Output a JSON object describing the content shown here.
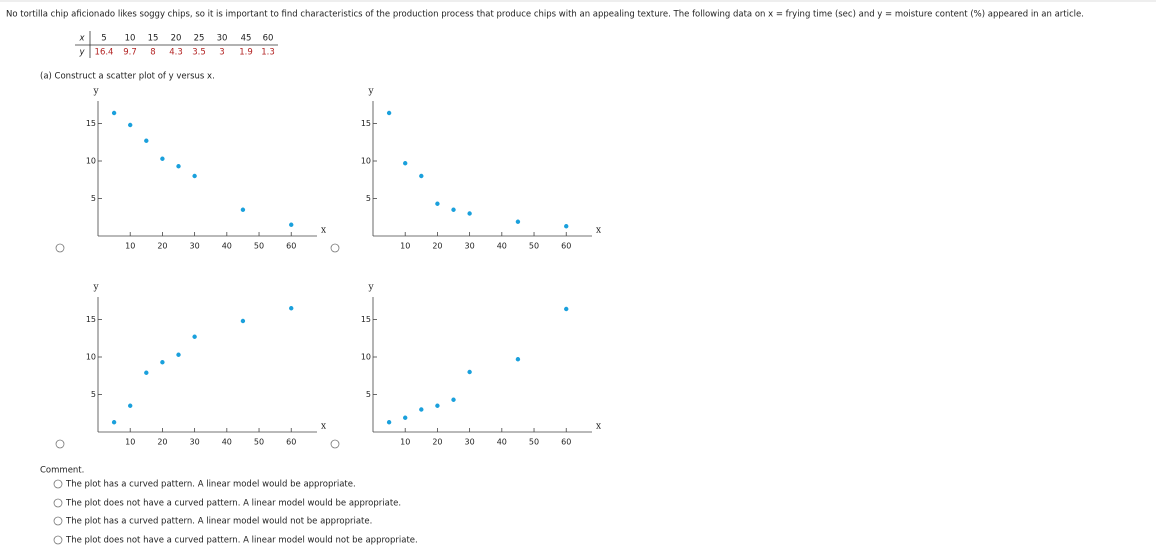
{
  "question": "No tortilla chip aficionado likes soggy chips, so it is important to find characteristics of the production process that produce chips with an appealing texture. The following data on x = frying time (sec) and y = moisture content (%) appeared in an article.",
  "table": {
    "x_label": "x",
    "y_label": "y",
    "x": [
      5,
      10,
      15,
      20,
      25,
      30,
      45,
      60
    ],
    "y": [
      16.4,
      9.7,
      8.0,
      4.3,
      3.5,
      3.0,
      1.9,
      1.3
    ]
  },
  "part_a": "(a) Construct a scatter plot of y versus x.",
  "chart_data": [
    {
      "type": "scatter",
      "x_label": "x",
      "y_label": "y",
      "color": "#1aa0dc",
      "xlim": [
        0,
        68
      ],
      "ylim": [
        0,
        18
      ],
      "xticks": [
        10,
        20,
        30,
        40,
        50,
        60
      ],
      "yticks": [
        5,
        10,
        15
      ],
      "x": [
        5,
        10,
        15,
        20,
        25,
        30,
        45,
        60
      ],
      "y": [
        16.4,
        14.8,
        12.7,
        10.3,
        9.3,
        8.0,
        3.5,
        1.5
      ]
    },
    {
      "type": "scatter",
      "x_label": "x",
      "y_label": "y",
      "color": "#1aa0dc",
      "xlim": [
        0,
        68
      ],
      "ylim": [
        0,
        18
      ],
      "xticks": [
        10,
        20,
        30,
        40,
        50,
        60
      ],
      "yticks": [
        5,
        10,
        15
      ],
      "x": [
        5,
        10,
        15,
        20,
        25,
        30,
        45,
        60
      ],
      "y": [
        16.4,
        9.7,
        8.0,
        4.3,
        3.5,
        3.0,
        1.9,
        1.3
      ]
    },
    {
      "type": "scatter",
      "x_label": "x",
      "y_label": "y",
      "color": "#1aa0dc",
      "xlim": [
        0,
        68
      ],
      "ylim": [
        0,
        18
      ],
      "xticks": [
        10,
        20,
        30,
        40,
        50,
        60
      ],
      "yticks": [
        5,
        10,
        15
      ],
      "x": [
        5,
        10,
        15,
        20,
        25,
        30,
        45,
        60
      ],
      "y": [
        1.3,
        3.5,
        7.9,
        9.3,
        10.3,
        12.7,
        14.8,
        16.5
      ]
    },
    {
      "type": "scatter",
      "x_label": "x",
      "y_label": "y",
      "color": "#1aa0dc",
      "xlim": [
        0,
        68
      ],
      "ylim": [
        0,
        18
      ],
      "xticks": [
        10,
        20,
        30,
        40,
        50,
        60
      ],
      "yticks": [
        5,
        10,
        15
      ],
      "x": [
        5,
        10,
        15,
        20,
        25,
        30,
        45,
        60
      ],
      "y": [
        1.3,
        1.9,
        3.0,
        3.5,
        4.3,
        8.0,
        9.7,
        16.4
      ]
    }
  ],
  "comment": {
    "label": "Comment.",
    "choices": [
      "The plot has a curved pattern. A linear model would be appropriate.",
      "The plot does not have a curved pattern. A linear model would be appropriate.",
      "The plot has a curved pattern. A linear model would not be appropriate.",
      "The plot does not have a curved pattern. A linear model would not be appropriate."
    ]
  }
}
